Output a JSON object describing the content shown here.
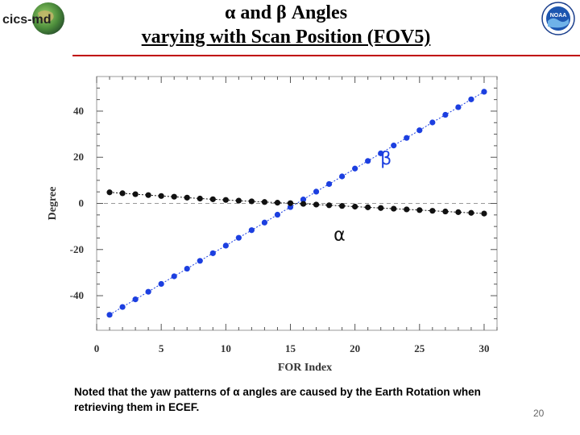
{
  "header": {
    "title_line1": "α and β Angles",
    "title_line2": "varying with Scan Position (FOV5)",
    "logo_left_text": "cics-md",
    "logo_right_text": "NOAA"
  },
  "chart_data": {
    "type": "scatter",
    "title": "",
    "xlabel": "FOR Index",
    "ylabel": "Degree",
    "xlim": [
      0,
      31
    ],
    "ylim": [
      -55,
      55
    ],
    "xticks": [
      0,
      5,
      10,
      15,
      20,
      25,
      30
    ],
    "yticks": [
      -40,
      -20,
      0,
      20,
      40
    ],
    "reference_line_y": 0,
    "series": [
      {
        "name": "β",
        "color": "#1c3fe0",
        "x": [
          1,
          2,
          3,
          4,
          5,
          6,
          7,
          8,
          9,
          10,
          11,
          12,
          13,
          14,
          15,
          16,
          17,
          18,
          19,
          20,
          21,
          22,
          23,
          24,
          25,
          26,
          27,
          28,
          29,
          30
        ],
        "y": [
          -48.3,
          -44.9,
          -41.6,
          -38.3,
          -34.9,
          -31.6,
          -28.3,
          -24.9,
          -21.6,
          -18.3,
          -14.9,
          -11.6,
          -8.3,
          -4.9,
          -1.6,
          1.7,
          5.1,
          8.4,
          11.7,
          15.1,
          18.4,
          21.7,
          25.1,
          28.4,
          31.7,
          35.1,
          38.4,
          41.7,
          45.1,
          48.4
        ]
      },
      {
        "name": "α",
        "color": "#111111",
        "x": [
          1,
          2,
          3,
          4,
          5,
          6,
          7,
          8,
          9,
          10,
          11,
          12,
          13,
          14,
          15,
          16,
          17,
          18,
          19,
          20,
          21,
          22,
          23,
          24,
          25,
          26,
          27,
          28,
          29,
          30
        ],
        "y": [
          4.8,
          4.4,
          4.0,
          3.6,
          3.2,
          2.9,
          2.5,
          2.1,
          1.8,
          1.5,
          1.2,
          0.9,
          0.6,
          0.3,
          0.1,
          -0.2,
          -0.5,
          -0.8,
          -1.1,
          -1.4,
          -1.7,
          -2.0,
          -2.3,
          -2.6,
          -2.9,
          -3.2,
          -3.5,
          -3.8,
          -4.1,
          -4.4
        ]
      }
    ],
    "annotations": [
      {
        "text": "β",
        "x": 22.4,
        "y": 17,
        "color": "#1c3fe0"
      },
      {
        "text": "α",
        "x": 18.8,
        "y": -16,
        "color": "#111111"
      }
    ]
  },
  "note": "Noted that the yaw patterns of  α angles  are caused by the Earth Rotation when retrieving them in ECEF.",
  "page_number": "20"
}
